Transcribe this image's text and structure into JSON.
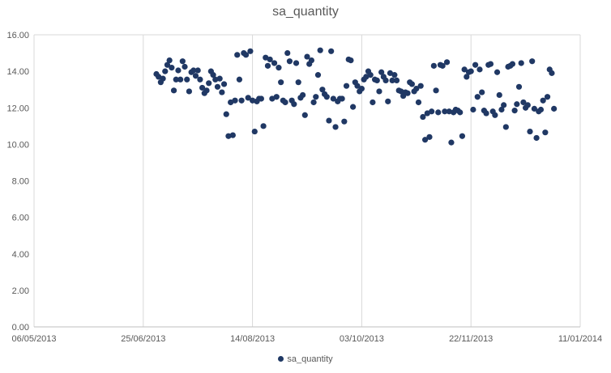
{
  "chart_data": {
    "type": "scatter",
    "title": "sa_quantity",
    "xlabel": "",
    "ylabel": "",
    "x_axis": {
      "type": "date",
      "min": "2013-05-06",
      "max": "2014-01-11",
      "tick_labels": [
        "06/05/2013",
        "25/06/2013",
        "14/08/2013",
        "03/10/2013",
        "22/11/2013",
        "11/01/2014"
      ],
      "tick_dates": [
        "2013-05-06",
        "2013-06-25",
        "2013-08-14",
        "2013-10-03",
        "2013-11-22",
        "2014-01-11"
      ]
    },
    "y_axis": {
      "min": 0,
      "max": 16,
      "tick_labels": [
        "0.00",
        "2.00",
        "4.00",
        "6.00",
        "8.00",
        "10.00",
        "12.00",
        "14.00",
        "16.00"
      ]
    },
    "grid": "vertical",
    "legend_position": "bottom",
    "marker_color": "#203864",
    "series": [
      {
        "name": "sa_quantity",
        "points": [
          [
            "2013-07-01",
            13.85
          ],
          [
            "2013-07-02",
            13.7
          ],
          [
            "2013-07-03",
            13.4
          ],
          [
            "2013-07-04",
            13.6
          ],
          [
            "2013-07-05",
            14.0
          ],
          [
            "2013-07-06",
            14.35
          ],
          [
            "2013-07-07",
            14.6
          ],
          [
            "2013-07-08",
            14.2
          ],
          [
            "2013-07-09",
            12.95
          ],
          [
            "2013-07-10",
            13.55
          ],
          [
            "2013-07-11",
            14.05
          ],
          [
            "2013-07-12",
            13.55
          ],
          [
            "2013-07-13",
            14.55
          ],
          [
            "2013-07-14",
            14.25
          ],
          [
            "2013-07-15",
            13.55
          ],
          [
            "2013-07-16",
            12.9
          ],
          [
            "2013-07-17",
            13.95
          ],
          [
            "2013-07-18",
            14.05
          ],
          [
            "2013-07-19",
            13.75
          ],
          [
            "2013-07-20",
            14.05
          ],
          [
            "2013-07-21",
            13.55
          ],
          [
            "2013-07-22",
            13.1
          ],
          [
            "2013-07-23",
            12.8
          ],
          [
            "2013-07-24",
            12.95
          ],
          [
            "2013-07-25",
            13.35
          ],
          [
            "2013-07-26",
            14.0
          ],
          [
            "2013-07-27",
            13.8
          ],
          [
            "2013-07-28",
            13.55
          ],
          [
            "2013-07-29",
            13.15
          ],
          [
            "2013-07-30",
            13.6
          ],
          [
            "2013-07-31",
            12.85
          ],
          [
            "2013-08-01",
            13.3
          ],
          [
            "2013-08-02",
            11.65
          ],
          [
            "2013-08-03",
            10.45
          ],
          [
            "2013-08-04",
            12.3
          ],
          [
            "2013-08-05",
            10.5
          ],
          [
            "2013-08-06",
            12.4
          ],
          [
            "2013-08-07",
            14.9
          ],
          [
            "2013-08-08",
            13.55
          ],
          [
            "2013-08-09",
            12.4
          ],
          [
            "2013-08-10",
            15.0
          ],
          [
            "2013-08-11",
            14.9
          ],
          [
            "2013-08-12",
            12.55
          ],
          [
            "2013-08-13",
            15.1
          ],
          [
            "2013-08-14",
            12.4
          ],
          [
            "2013-08-15",
            10.7
          ],
          [
            "2013-08-16",
            12.35
          ],
          [
            "2013-08-17",
            12.5
          ],
          [
            "2013-08-18",
            12.5
          ],
          [
            "2013-08-19",
            11.0
          ],
          [
            "2013-08-20",
            14.75
          ],
          [
            "2013-08-21",
            14.3
          ],
          [
            "2013-08-22",
            14.65
          ],
          [
            "2013-08-23",
            12.5
          ],
          [
            "2013-08-24",
            14.45
          ],
          [
            "2013-08-25",
            12.6
          ],
          [
            "2013-08-26",
            14.2
          ],
          [
            "2013-08-27",
            13.4
          ],
          [
            "2013-08-28",
            12.4
          ],
          [
            "2013-08-29",
            12.3
          ],
          [
            "2013-08-30",
            15.0
          ],
          [
            "2013-08-31",
            14.55
          ],
          [
            "2013-09-01",
            12.4
          ],
          [
            "2013-09-02",
            12.2
          ],
          [
            "2013-09-03",
            14.45
          ],
          [
            "2013-09-04",
            13.4
          ],
          [
            "2013-09-05",
            12.55
          ],
          [
            "2013-09-06",
            12.7
          ],
          [
            "2013-09-07",
            11.6
          ],
          [
            "2013-09-08",
            14.8
          ],
          [
            "2013-09-09",
            14.4
          ],
          [
            "2013-09-10",
            14.6
          ],
          [
            "2013-09-11",
            12.3
          ],
          [
            "2013-09-12",
            12.6
          ],
          [
            "2013-09-13",
            13.8
          ],
          [
            "2013-09-14",
            15.15
          ],
          [
            "2013-09-15",
            13.0
          ],
          [
            "2013-09-16",
            12.75
          ],
          [
            "2013-09-17",
            12.6
          ],
          [
            "2013-09-18",
            11.3
          ],
          [
            "2013-09-19",
            15.1
          ],
          [
            "2013-09-20",
            12.5
          ],
          [
            "2013-09-21",
            10.95
          ],
          [
            "2013-09-22",
            12.35
          ],
          [
            "2013-09-23",
            12.5
          ],
          [
            "2013-09-24",
            12.5
          ],
          [
            "2013-09-25",
            11.25
          ],
          [
            "2013-09-26",
            13.2
          ],
          [
            "2013-09-27",
            14.65
          ],
          [
            "2013-09-28",
            14.6
          ],
          [
            "2013-09-29",
            12.05
          ],
          [
            "2013-09-30",
            13.4
          ],
          [
            "2013-10-01",
            13.2
          ],
          [
            "2013-10-02",
            12.9
          ],
          [
            "2013-10-03",
            13.05
          ],
          [
            "2013-10-04",
            13.55
          ],
          [
            "2013-10-05",
            13.7
          ],
          [
            "2013-10-06",
            14.0
          ],
          [
            "2013-10-07",
            13.8
          ],
          [
            "2013-10-08",
            12.3
          ],
          [
            "2013-10-09",
            13.55
          ],
          [
            "2013-10-10",
            13.5
          ],
          [
            "2013-10-11",
            12.9
          ],
          [
            "2013-10-12",
            13.95
          ],
          [
            "2013-10-13",
            13.7
          ],
          [
            "2013-10-14",
            13.5
          ],
          [
            "2013-10-15",
            12.35
          ],
          [
            "2013-10-16",
            13.9
          ],
          [
            "2013-10-17",
            13.5
          ],
          [
            "2013-10-18",
            13.8
          ],
          [
            "2013-10-19",
            13.5
          ],
          [
            "2013-10-20",
            12.95
          ],
          [
            "2013-10-21",
            12.9
          ],
          [
            "2013-10-22",
            12.65
          ],
          [
            "2013-10-23",
            12.85
          ],
          [
            "2013-10-24",
            12.8
          ],
          [
            "2013-10-25",
            13.4
          ],
          [
            "2013-10-26",
            13.3
          ],
          [
            "2013-10-27",
            12.9
          ],
          [
            "2013-10-28",
            13.05
          ],
          [
            "2013-10-29",
            12.3
          ],
          [
            "2013-10-30",
            13.2
          ],
          [
            "2013-10-31",
            11.5
          ],
          [
            "2013-11-01",
            10.25
          ],
          [
            "2013-11-02",
            11.7
          ],
          [
            "2013-11-03",
            10.4
          ],
          [
            "2013-11-04",
            11.8
          ],
          [
            "2013-11-05",
            14.3
          ],
          [
            "2013-11-06",
            12.95
          ],
          [
            "2013-11-07",
            11.75
          ],
          [
            "2013-11-08",
            14.35
          ],
          [
            "2013-11-09",
            14.3
          ],
          [
            "2013-11-10",
            11.8
          ],
          [
            "2013-11-11",
            14.5
          ],
          [
            "2013-11-12",
            11.8
          ],
          [
            "2013-11-13",
            10.1
          ],
          [
            "2013-11-14",
            11.75
          ],
          [
            "2013-11-15",
            11.9
          ],
          [
            "2013-11-16",
            11.85
          ],
          [
            "2013-11-17",
            11.75
          ],
          [
            "2013-11-18",
            10.45
          ],
          [
            "2013-11-19",
            14.1
          ],
          [
            "2013-11-20",
            13.7
          ],
          [
            "2013-11-21",
            13.95
          ],
          [
            "2013-11-22",
            14.0
          ],
          [
            "2013-11-23",
            11.9
          ],
          [
            "2013-11-24",
            14.35
          ],
          [
            "2013-11-25",
            12.6
          ],
          [
            "2013-11-26",
            14.1
          ],
          [
            "2013-11-27",
            12.85
          ],
          [
            "2013-11-28",
            11.85
          ],
          [
            "2013-11-29",
            11.7
          ],
          [
            "2013-11-30",
            14.35
          ],
          [
            "2013-12-01",
            14.4
          ],
          [
            "2013-12-02",
            11.8
          ],
          [
            "2013-12-03",
            11.6
          ],
          [
            "2013-12-04",
            13.95
          ],
          [
            "2013-12-05",
            12.7
          ],
          [
            "2013-12-06",
            11.9
          ],
          [
            "2013-12-07",
            12.15
          ],
          [
            "2013-12-08",
            10.95
          ],
          [
            "2013-12-09",
            14.25
          ],
          [
            "2013-12-10",
            14.3
          ],
          [
            "2013-12-11",
            14.4
          ],
          [
            "2013-12-12",
            11.85
          ],
          [
            "2013-12-13",
            12.2
          ],
          [
            "2013-12-14",
            13.15
          ],
          [
            "2013-12-15",
            14.45
          ],
          [
            "2013-12-16",
            12.3
          ],
          [
            "2013-12-17",
            12.0
          ],
          [
            "2013-12-18",
            12.15
          ],
          [
            "2013-12-19",
            10.7
          ],
          [
            "2013-12-20",
            14.55
          ],
          [
            "2013-12-21",
            11.95
          ],
          [
            "2013-12-22",
            10.35
          ],
          [
            "2013-12-23",
            11.8
          ],
          [
            "2013-12-24",
            11.9
          ],
          [
            "2013-12-25",
            12.4
          ],
          [
            "2013-12-26",
            10.65
          ],
          [
            "2013-12-27",
            12.6
          ],
          [
            "2013-12-28",
            14.1
          ],
          [
            "2013-12-29",
            13.9
          ],
          [
            "2013-12-30",
            11.95
          ]
        ]
      }
    ]
  }
}
